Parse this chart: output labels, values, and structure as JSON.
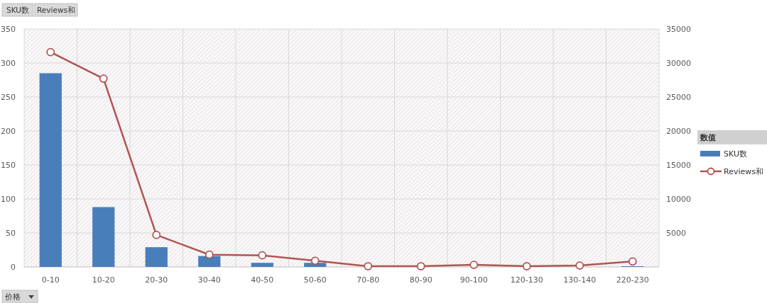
{
  "chart_data": {
    "type": "bar",
    "categories": [
      "0-10",
      "10-20",
      "20-30",
      "30-40",
      "40-50",
      "50-60",
      "70-80",
      "80-90",
      "90-100",
      "120-130",
      "130-140",
      "220-230"
    ],
    "series": [
      {
        "name": "SKU数",
        "color": "#4a7ebb",
        "values": [
          285,
          88,
          29,
          16,
          6,
          6,
          null,
          null,
          null,
          0,
          null,
          1
        ]
      },
      {
        "name": "Reviews和",
        "type": "line",
        "axis": "y2",
        "color": "#b05552",
        "marker": "circle",
        "values": [
          31600,
          27700,
          4700,
          1800,
          1700,
          900,
          100,
          100,
          300,
          100,
          200,
          800
        ]
      }
    ],
    "ylim": [
      0,
      350
    ],
    "yticks": [
      0,
      50,
      100,
      150,
      200,
      250,
      300,
      350
    ],
    "y2lim": [
      0,
      35000
    ],
    "y2ticks": [
      5000,
      10000,
      15000,
      20000,
      25000,
      30000,
      35000
    ],
    "grid": true,
    "legend": "right",
    "legend_title": "数值",
    "annotations": [
      "SKU数",
      "Reviews和",
      "价格"
    ]
  }
}
